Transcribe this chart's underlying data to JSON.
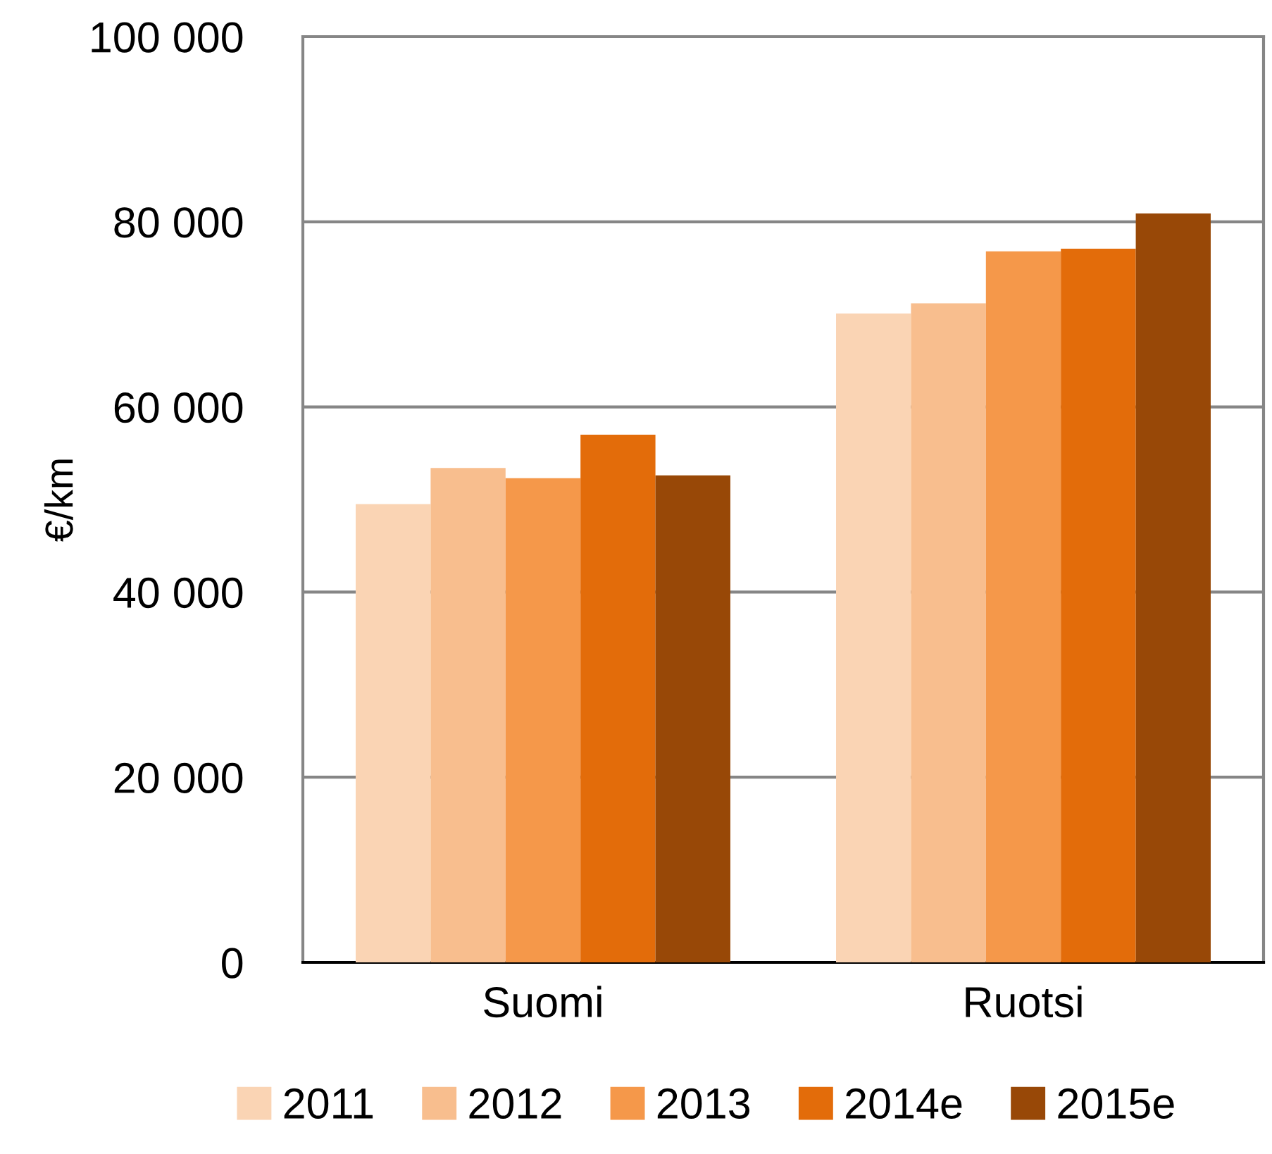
{
  "chart_data": {
    "type": "bar",
    "ylabel": "€/km",
    "categories": [
      "Suomi",
      "Ruotsi"
    ],
    "series": [
      {
        "name": "2011",
        "color": "#fad4b4",
        "values": [
          49500,
          70100
        ]
      },
      {
        "name": "2012",
        "color": "#f8be8e",
        "values": [
          53400,
          71200
        ]
      },
      {
        "name": "2013",
        "color": "#f5984a",
        "values": [
          52300,
          76800
        ]
      },
      {
        "name": "2014e",
        "color": "#e36c0a",
        "values": [
          57000,
          77100
        ]
      },
      {
        "name": "2015e",
        "color": "#984807",
        "values": [
          52600,
          80900
        ]
      }
    ],
    "ylim": [
      0,
      100000
    ],
    "yticks": [
      {
        "value": 0,
        "label": "0"
      },
      {
        "value": 20000,
        "label": "20 000"
      },
      {
        "value": 40000,
        "label": "40 000"
      },
      {
        "value": 60000,
        "label": "60 000"
      },
      {
        "value": 80000,
        "label": "80 000"
      },
      {
        "value": 100000,
        "label": "100 000"
      }
    ],
    "grid": "y",
    "legend": "bottom"
  }
}
